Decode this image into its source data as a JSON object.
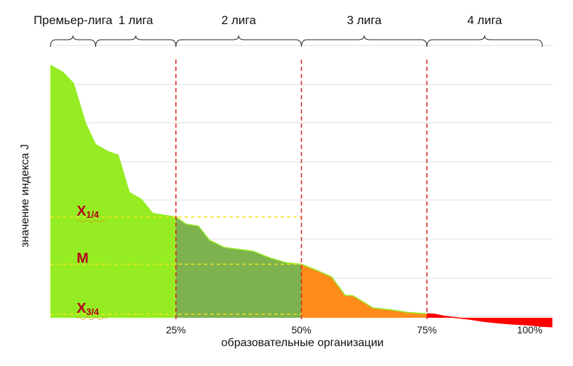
{
  "chart_data": {
    "type": "area",
    "xlabel": "образовательные организации",
    "ylabel": "значение индекса J",
    "x_ticks": [
      "25%",
      "50%",
      "75%",
      "100%"
    ],
    "xlim": [
      0,
      100
    ],
    "ylim": [
      0,
      100
    ],
    "grid": true,
    "x": [
      0,
      2.5,
      4.6,
      7,
      9,
      11.5,
      13.5,
      15.7,
      18.1,
      20.4,
      25,
      27,
      29.5,
      31.7,
      34.6,
      37.5,
      40.5,
      44,
      47,
      50,
      53.5,
      56,
      58.7,
      60.3,
      64.3,
      68,
      71,
      74,
      76.5,
      78.5,
      81,
      83.6,
      86.2,
      89,
      92,
      95,
      98,
      100
    ],
    "values": [
      100,
      97.2,
      92.8,
      77,
      68.6,
      65.8,
      64.4,
      49.7,
      46.9,
      41.3,
      39.9,
      37.1,
      36.3,
      30.7,
      27.9,
      27.1,
      26.3,
      23.5,
      21.8,
      21.2,
      18.4,
      16.2,
      8.9,
      8.7,
      3.9,
      3.1,
      2.2,
      1.7,
      1.4,
      0.6,
      0.0,
      -0.6,
      -1.4,
      -2.0,
      -2.5,
      -2.8,
      -3.4,
      -3.6
    ],
    "series_colors": [
      "#95ec22",
      "#7eb24f",
      "#ff8c1a",
      "#ff0000"
    ],
    "reference_lines": {
      "vertical": [
        25,
        50,
        75
      ],
      "vertical_color": "#dd2222",
      "horizontal_color": "#f2e418",
      "horizontal": [
        {
          "label_main": "X",
          "label_sub": "1/4",
          "value": 39.9
        },
        {
          "label_main": "M",
          "label_sub": "",
          "value": 21.2
        },
        {
          "label_main": "X",
          "label_sub": "3/4",
          "value": 1.4
        }
      ]
    },
    "leagues": [
      {
        "name": "Премьер-лига",
        "from": 0,
        "to": 9
      },
      {
        "name": "1 лига",
        "from": 9,
        "to": 25
      },
      {
        "name": "2 лига",
        "from": 25,
        "to": 50
      },
      {
        "name": "3 лига",
        "from": 50,
        "to": 75
      },
      {
        "name": "4 лига",
        "from": 75,
        "to": 98
      }
    ]
  }
}
